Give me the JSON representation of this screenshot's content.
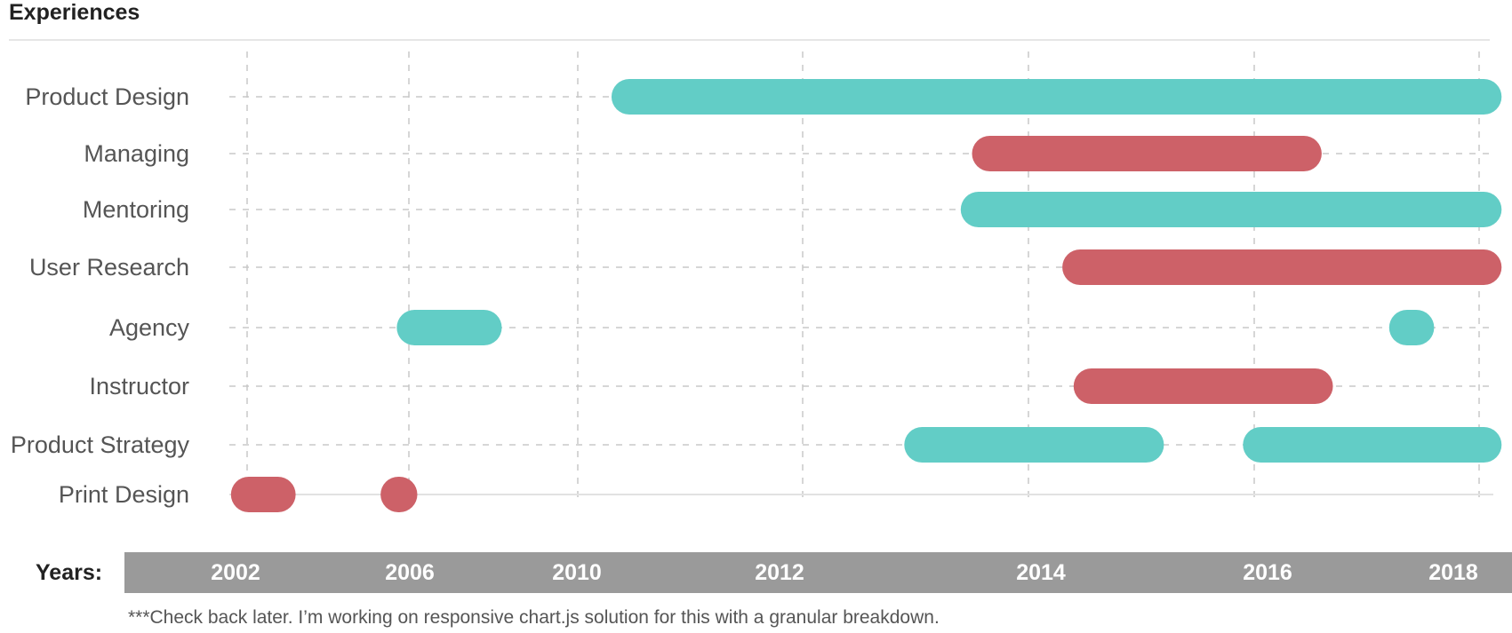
{
  "header": {
    "title": "Experiences"
  },
  "axis": {
    "label": "Years:"
  },
  "note": "***Check back later. I’m working on responsive chart.js solution for this with a granular breakdown.",
  "colors": {
    "teal": "#62cdc6",
    "red": "#cd6168",
    "grid": "#c8c8c8",
    "year_bar": "#9a9a9a"
  },
  "chart_data": {
    "type": "bar",
    "orientation": "horizontal-ranges",
    "title": "Experiences",
    "xlabel": "Years:",
    "ylabel": "",
    "x_tick_labels": [
      "2002",
      "2006",
      "2010",
      "2012",
      "2014",
      "2016",
      "2018"
    ],
    "categories": [
      "Product Design",
      "Managing",
      "Mentoring",
      "User Research",
      "Agency",
      "Instructor",
      "Product Strategy",
      "Print Design"
    ],
    "ranges": [
      {
        "category": "Product Design",
        "color": "teal",
        "start": 2010.3,
        "end": 2018.2
      },
      {
        "category": "Managing",
        "color": "red",
        "start": 2013.5,
        "end": 2016.6
      },
      {
        "category": "Mentoring",
        "color": "teal",
        "start": 2013.4,
        "end": 2018.2
      },
      {
        "category": "User Research",
        "color": "red",
        "start": 2014.3,
        "end": 2018.2
      },
      {
        "category": "Agency",
        "color": "teal",
        "start": 2005.7,
        "end": 2008.2
      },
      {
        "category": "Agency",
        "color": "teal",
        "start": 2017.2,
        "end": 2017.6
      },
      {
        "category": "Instructor",
        "color": "red",
        "start": 2014.4,
        "end": 2016.7
      },
      {
        "category": "Product Strategy",
        "color": "teal",
        "start": 2012.9,
        "end": 2015.2
      },
      {
        "category": "Product Strategy",
        "color": "teal",
        "start": 2015.9,
        "end": 2018.2
      },
      {
        "category": "Print Design",
        "color": "red",
        "start": 2001.6,
        "end": 2003.2
      },
      {
        "category": "Print Design",
        "color": "red",
        "start": 2005.3,
        "end": 2006.2
      }
    ]
  }
}
